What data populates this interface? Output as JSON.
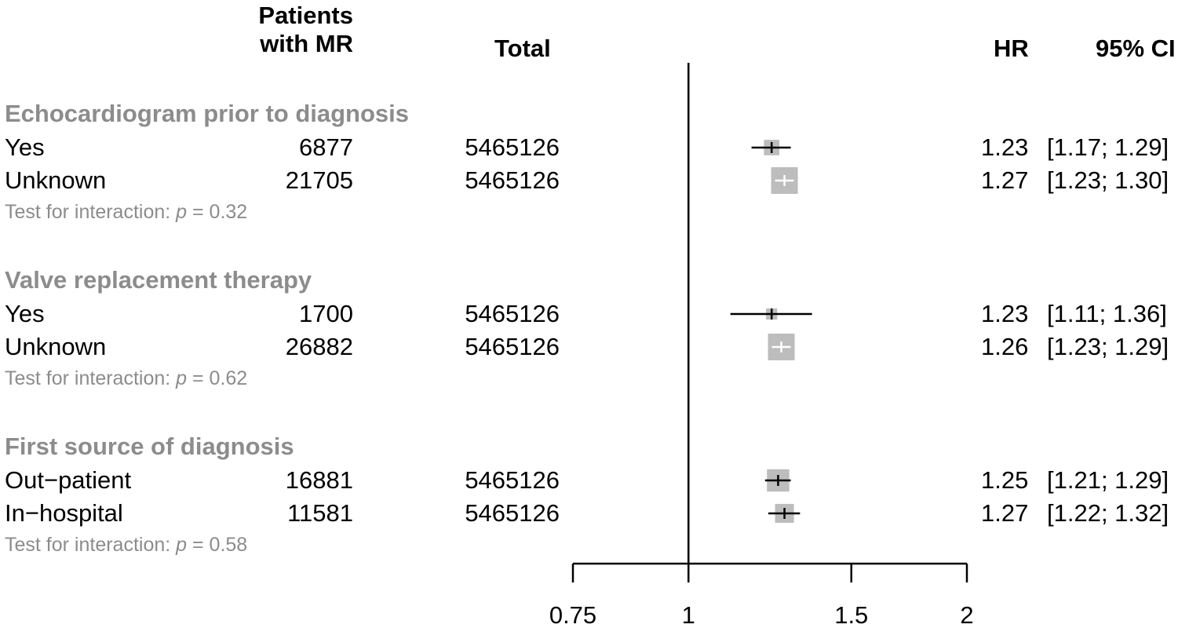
{
  "headers": {
    "patients_line1": "Patients",
    "patients_line2": "with MR",
    "total": "Total",
    "hr": "HR",
    "ci": "95% CI"
  },
  "groups": [
    {
      "title": "Echocardiogram prior to diagnosis",
      "interaction_prefix": "Test for interaction: ",
      "interaction_p_symbol": "p",
      "interaction_value": " = 0.32",
      "rows": [
        {
          "label": "Yes",
          "patients": "6877",
          "total": "5465126",
          "hr_text": "1.23",
          "ci_text": "[1.17; 1.29]",
          "weight": 0.35
        },
        {
          "label": "Unknown",
          "patients": "21705",
          "total": "5465126",
          "hr_text": "1.27",
          "ci_text": "[1.23; 1.30]",
          "weight": 1.0
        }
      ]
    },
    {
      "title": "Valve replacement therapy",
      "interaction_prefix": "Test for interaction: ",
      "interaction_p_symbol": "p",
      "interaction_value": " = 0.62",
      "rows": [
        {
          "label": "Yes",
          "patients": "1700",
          "total": "5465126",
          "hr_text": "1.23",
          "ci_text": "[1.11; 1.36]",
          "weight": 0.1
        },
        {
          "label": "Unknown",
          "patients": "26882",
          "total": "5465126",
          "hr_text": "1.26",
          "ci_text": "[1.23; 1.29]",
          "weight": 1.0
        }
      ]
    },
    {
      "title": "First source of diagnosis",
      "interaction_prefix": "Test for interaction: ",
      "interaction_p_symbol": "p",
      "interaction_value": " = 0.58",
      "rows": [
        {
          "label": "Out−patient",
          "patients": "16881",
          "total": "5465126",
          "hr_text": "1.25",
          "ci_text": "[1.21; 1.29]",
          "weight": 0.75
        },
        {
          "label": "In−hospital",
          "patients": "11581",
          "total": "5465126",
          "hr_text": "1.27",
          "ci_text": "[1.22; 1.32]",
          "weight": 0.55
        }
      ]
    }
  ],
  "chart_data": {
    "type": "forest",
    "x_scale": "log",
    "xlim": [
      0.75,
      2
    ],
    "reference_line": 1,
    "xticks": [
      0.75,
      1,
      1.5,
      2
    ],
    "xtick_labels": [
      "0.75",
      "1",
      "1.5",
      "2"
    ],
    "points": [
      {
        "group": "Echocardiogram prior to diagnosis",
        "label": "Yes",
        "hr": 1.23,
        "lower": 1.17,
        "upper": 1.29
      },
      {
        "group": "Echocardiogram prior to diagnosis",
        "label": "Unknown",
        "hr": 1.27,
        "lower": 1.23,
        "upper": 1.3
      },
      {
        "group": "Valve replacement therapy",
        "label": "Yes",
        "hr": 1.23,
        "lower": 1.11,
        "upper": 1.36
      },
      {
        "group": "Valve replacement therapy",
        "label": "Unknown",
        "hr": 1.26,
        "lower": 1.23,
        "upper": 1.29
      },
      {
        "group": "First source of diagnosis",
        "label": "Out−patient",
        "hr": 1.25,
        "lower": 1.21,
        "upper": 1.29
      },
      {
        "group": "First source of diagnosis",
        "label": "In−hospital",
        "hr": 1.27,
        "lower": 1.22,
        "upper": 1.32
      }
    ],
    "colors": {
      "box": "#bdbdbd",
      "line": "#000000",
      "inner_tick_light": "#ffffff"
    }
  }
}
